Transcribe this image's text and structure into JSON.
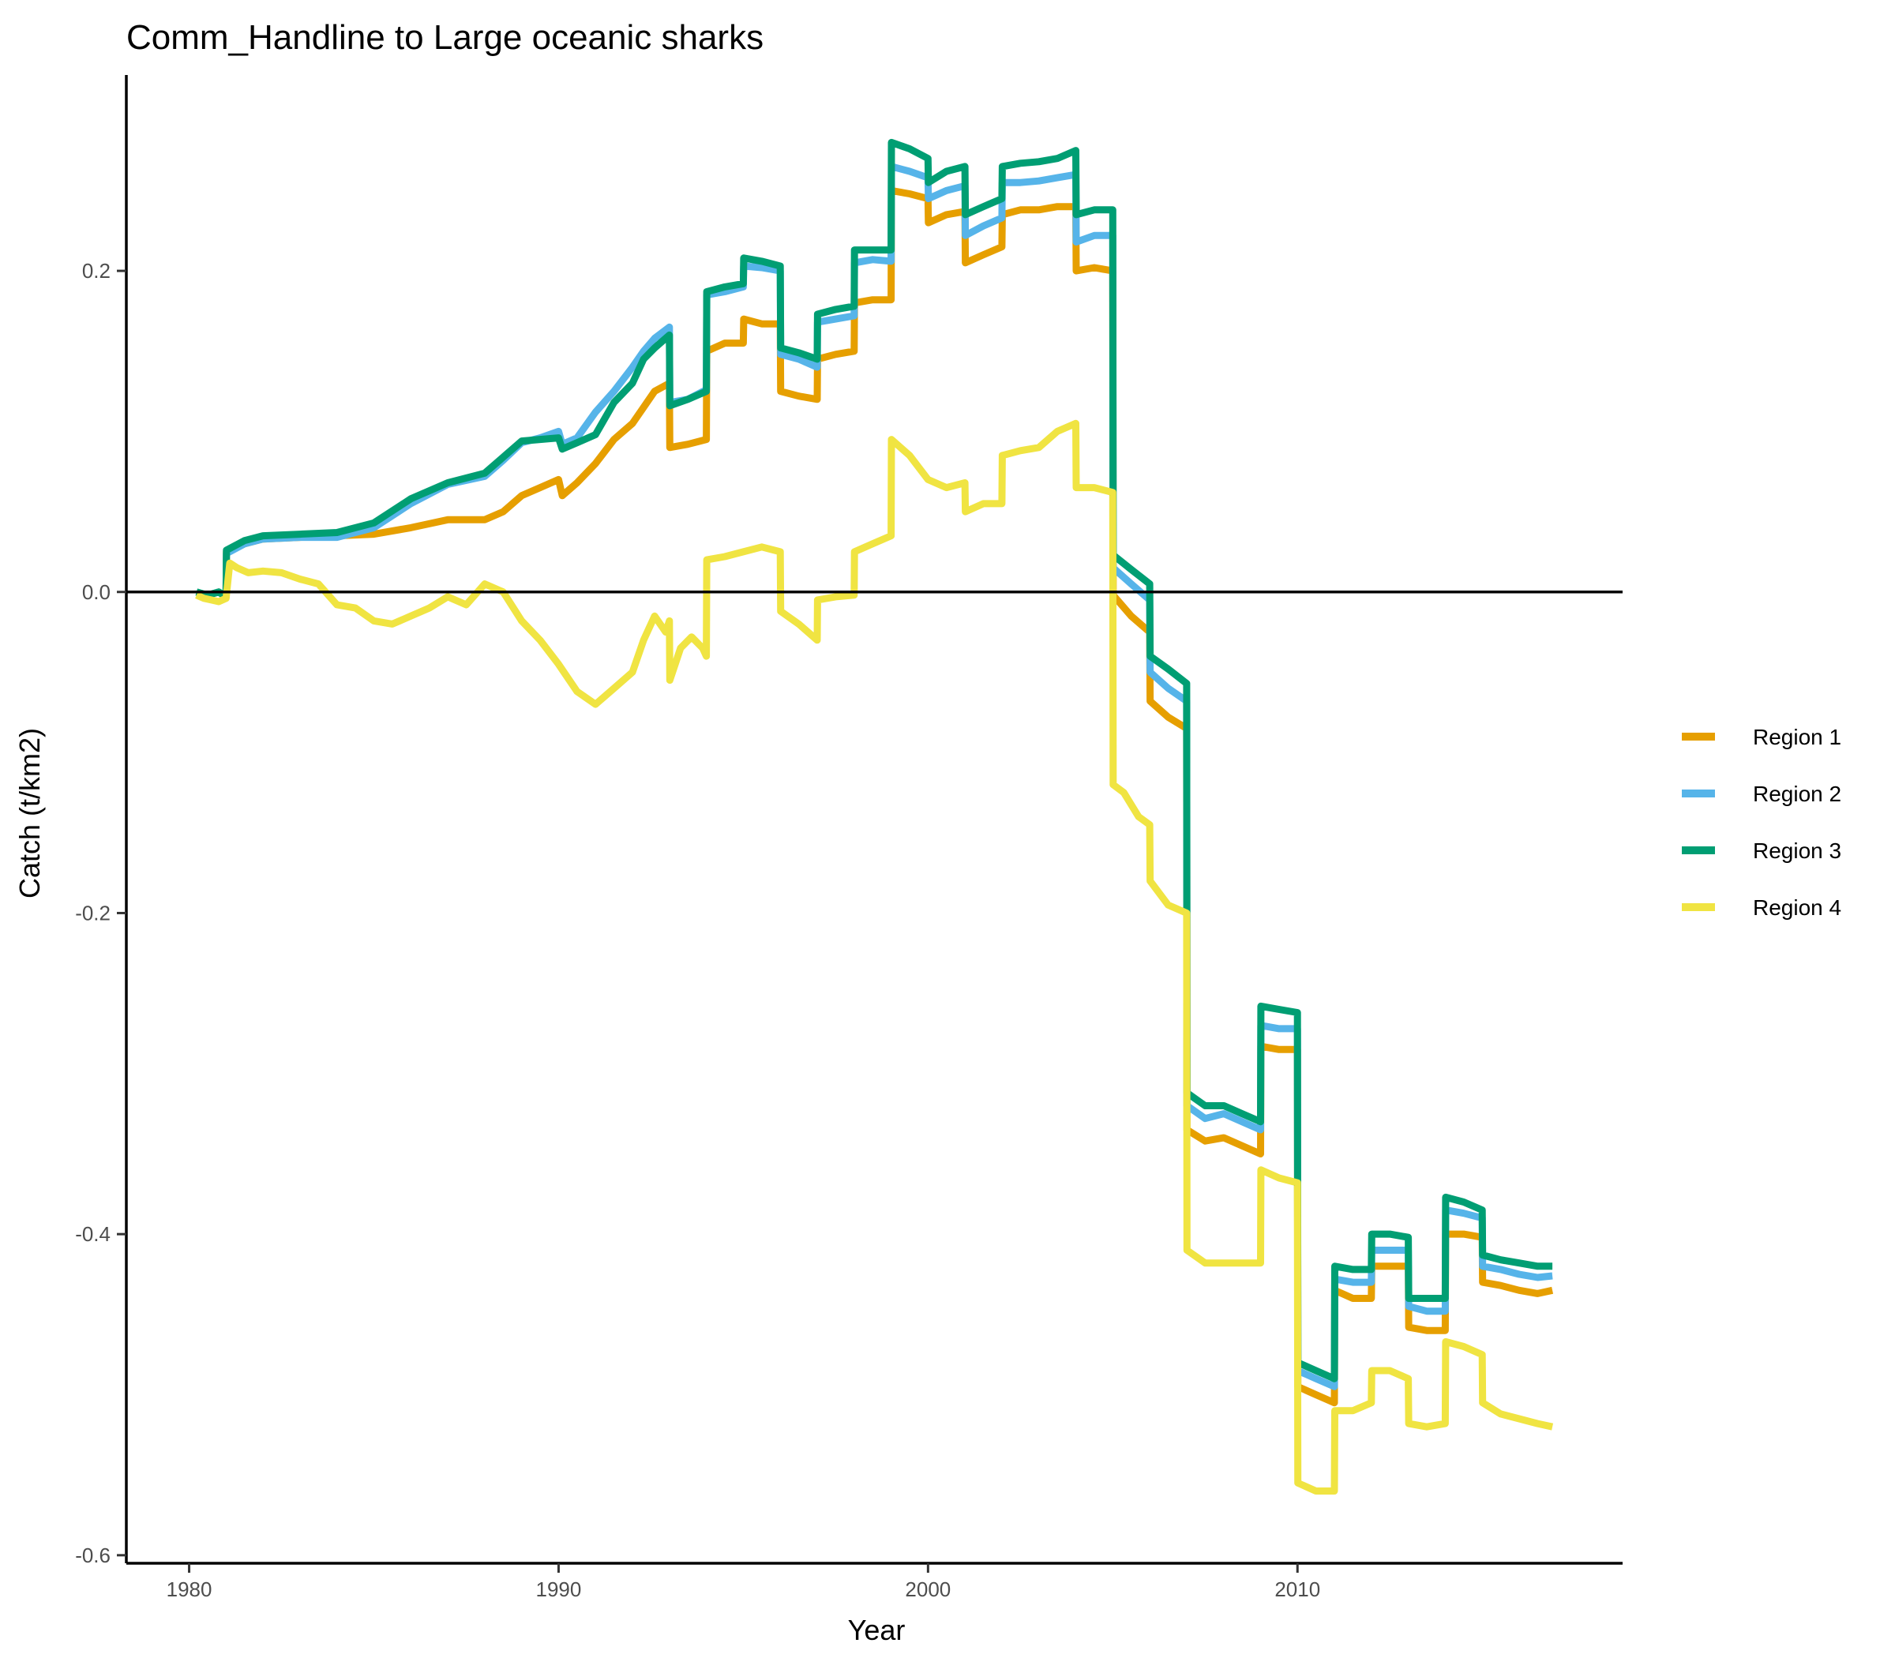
{
  "chart_data": {
    "type": "line",
    "title": "Comm_Handline to Large oceanic sharks",
    "xlabel": "Year",
    "ylabel": "Catch (t/km2)",
    "xlim": [
      1978.3,
      2018.8
    ],
    "ylim": [
      -0.605,
      0.322
    ],
    "xticks": [
      1980,
      1990,
      2000,
      2010
    ],
    "xtick_labels": [
      "1980",
      "1990",
      "2000",
      "2010"
    ],
    "yticks": [
      -0.6,
      -0.4,
      -0.2,
      0.0,
      0.2
    ],
    "ytick_labels": [
      "-0.6",
      "-0.4",
      "-0.2",
      "0.0",
      "0.2"
    ],
    "hline": 0,
    "grid": false,
    "legend_position": "right",
    "series": [
      {
        "name": "Region 1",
        "color": "#E69F00",
        "x": [
          1980.2,
          1980.5,
          1980.8,
          1981.0,
          1981.01,
          1981.5,
          1982,
          1983,
          1984,
          1985,
          1986,
          1987,
          1988,
          1988.5,
          1989,
          1989.5,
          1990,
          1990.1,
          1990.5,
          1991,
          1991.5,
          1992,
          1992.3,
          1992.6,
          1993.0,
          1993.01,
          1993.5,
          1994.0,
          1994.01,
          1994.5,
          1995.0,
          1995.01,
          1995.5,
          1996.0,
          1996.01,
          1996.5,
          1997.0,
          1997.01,
          1997.5,
          1998.0,
          1998.01,
          1998.5,
          1999.0,
          1999.01,
          1999.5,
          2000.0,
          2000.01,
          2000.5,
          2001.0,
          2001.01,
          2001.5,
          2002.0,
          2002.01,
          2002.5,
          2003.0,
          2003.5,
          2004.0,
          2004.01,
          2004.5,
          2005.0,
          2005.01,
          2005.5,
          2006.0,
          2006.01,
          2006.5,
          2007.0,
          2007.01,
          2007.5,
          2008.0,
          2008.01,
          2008.5,
          2009.0,
          2009.01,
          2009.5,
          2010.0,
          2010.01,
          2010.5,
          2011.0,
          2011.01,
          2011.5,
          2012.0,
          2012.01,
          2012.5,
          2013.0,
          2013.01,
          2013.5,
          2014.0,
          2014.01,
          2014.5,
          2015.0,
          2015.01,
          2015.5,
          2016.0,
          2016.5,
          2016.9
        ],
        "values": [
          0.0,
          -0.002,
          0.0,
          -0.003,
          0.025,
          0.03,
          0.033,
          0.034,
          0.035,
          0.036,
          0.04,
          0.045,
          0.045,
          0.05,
          0.06,
          0.065,
          0.07,
          0.06,
          0.068,
          0.08,
          0.095,
          0.105,
          0.115,
          0.125,
          0.13,
          0.09,
          0.092,
          0.095,
          0.15,
          0.155,
          0.155,
          0.17,
          0.167,
          0.167,
          0.125,
          0.122,
          0.12,
          0.145,
          0.148,
          0.15,
          0.18,
          0.182,
          0.182,
          0.25,
          0.248,
          0.245,
          0.23,
          0.235,
          0.237,
          0.205,
          0.21,
          0.215,
          0.235,
          0.238,
          0.238,
          0.24,
          0.24,
          0.2,
          0.202,
          0.2,
          -0.002,
          -0.015,
          -0.025,
          -0.068,
          -0.078,
          -0.085,
          -0.335,
          -0.342,
          -0.34,
          -0.34,
          -0.345,
          -0.35,
          -0.283,
          -0.285,
          -0.285,
          -0.495,
          -0.5,
          -0.505,
          -0.435,
          -0.44,
          -0.44,
          -0.42,
          -0.42,
          -0.42,
          -0.458,
          -0.46,
          -0.46,
          -0.4,
          -0.4,
          -0.402,
          -0.43,
          -0.432,
          -0.435,
          -0.437,
          -0.435
        ]
      },
      {
        "name": "Region 2",
        "color": "#56B4E9",
        "x": [
          1980.2,
          1980.5,
          1980.8,
          1981.0,
          1981.01,
          1981.5,
          1982,
          1983,
          1984,
          1985,
          1986,
          1987,
          1988,
          1988.5,
          1989,
          1989.5,
          1990,
          1990.1,
          1990.5,
          1991,
          1991.5,
          1992,
          1992.3,
          1992.6,
          1993.0,
          1993.01,
          1993.5,
          1994.0,
          1994.01,
          1994.5,
          1995.0,
          1995.01,
          1995.5,
          1996.0,
          1996.01,
          1996.5,
          1997.0,
          1997.01,
          1997.5,
          1998.0,
          1998.01,
          1998.5,
          1999.0,
          1999.01,
          1999.5,
          2000.0,
          2000.01,
          2000.5,
          2001.0,
          2001.01,
          2001.5,
          2002.0,
          2002.01,
          2002.5,
          2003.0,
          2003.5,
          2004.0,
          2004.01,
          2004.5,
          2005.0,
          2005.01,
          2005.5,
          2006.0,
          2006.01,
          2006.5,
          2007.0,
          2007.01,
          2007.5,
          2008.0,
          2008.01,
          2008.5,
          2009.0,
          2009.01,
          2009.5,
          2010.0,
          2010.01,
          2010.5,
          2011.0,
          2011.01,
          2011.5,
          2012.0,
          2012.01,
          2012.5,
          2013.0,
          2013.01,
          2013.5,
          2014.0,
          2014.01,
          2014.5,
          2015.0,
          2015.01,
          2015.5,
          2016.0,
          2016.5,
          2016.9
        ],
        "values": [
          0.0,
          -0.002,
          0.0,
          -0.003,
          0.024,
          0.03,
          0.033,
          0.034,
          0.034,
          0.04,
          0.055,
          0.067,
          0.072,
          0.082,
          0.093,
          0.096,
          0.1,
          0.092,
          0.096,
          0.112,
          0.125,
          0.14,
          0.15,
          0.158,
          0.165,
          0.118,
          0.12,
          0.126,
          0.185,
          0.187,
          0.19,
          0.203,
          0.202,
          0.2,
          0.148,
          0.145,
          0.14,
          0.168,
          0.17,
          0.172,
          0.205,
          0.207,
          0.206,
          0.265,
          0.262,
          0.258,
          0.245,
          0.25,
          0.253,
          0.222,
          0.228,
          0.233,
          0.255,
          0.255,
          0.256,
          0.258,
          0.26,
          0.218,
          0.222,
          0.222,
          0.015,
          0.005,
          -0.005,
          -0.05,
          -0.06,
          -0.068,
          -0.32,
          -0.328,
          -0.325,
          -0.325,
          -0.33,
          -0.335,
          -0.27,
          -0.272,
          -0.272,
          -0.485,
          -0.49,
          -0.495,
          -0.428,
          -0.43,
          -0.43,
          -0.41,
          -0.41,
          -0.41,
          -0.445,
          -0.448,
          -0.448,
          -0.385,
          -0.387,
          -0.39,
          -0.42,
          -0.422,
          -0.425,
          -0.427,
          -0.426
        ]
      },
      {
        "name": "Region 3",
        "color": "#009E73",
        "x": [
          1980.2,
          1980.5,
          1980.8,
          1981.0,
          1981.01,
          1981.5,
          1982,
          1983,
          1984,
          1985,
          1986,
          1987,
          1988,
          1988.5,
          1989,
          1989.5,
          1990,
          1990.1,
          1990.5,
          1991,
          1991.5,
          1992,
          1992.3,
          1992.6,
          1993.0,
          1993.01,
          1993.5,
          1994.0,
          1994.01,
          1994.5,
          1995.0,
          1995.01,
          1995.5,
          1996.0,
          1996.01,
          1996.5,
          1997.0,
          1997.01,
          1997.5,
          1998.0,
          1998.01,
          1998.5,
          1999.0,
          1999.01,
          1999.5,
          2000.0,
          2000.01,
          2000.5,
          2001.0,
          2001.01,
          2001.5,
          2002.0,
          2002.01,
          2002.5,
          2003.0,
          2003.5,
          2004.0,
          2004.01,
          2004.5,
          2005.0,
          2005.01,
          2005.5,
          2006.0,
          2006.01,
          2006.5,
          2007.0,
          2007.01,
          2007.5,
          2008.0,
          2008.01,
          2008.5,
          2009.0,
          2009.01,
          2009.5,
          2010.0,
          2010.01,
          2010.5,
          2011.0,
          2011.01,
          2011.5,
          2012.0,
          2012.01,
          2012.5,
          2013.0,
          2013.01,
          2013.5,
          2014.0,
          2014.01,
          2014.5,
          2015.0,
          2015.01,
          2015.5,
          2016.0,
          2016.5,
          2016.9
        ],
        "values": [
          0.0,
          -0.002,
          0.0,
          -0.003,
          0.026,
          0.032,
          0.035,
          0.036,
          0.037,
          0.043,
          0.058,
          0.068,
          0.074,
          0.084,
          0.094,
          0.095,
          0.096,
          0.089,
          0.093,
          0.098,
          0.118,
          0.13,
          0.145,
          0.152,
          0.16,
          0.116,
          0.12,
          0.125,
          0.187,
          0.19,
          0.192,
          0.208,
          0.206,
          0.203,
          0.152,
          0.149,
          0.145,
          0.173,
          0.176,
          0.178,
          0.213,
          0.213,
          0.213,
          0.28,
          0.276,
          0.27,
          0.255,
          0.262,
          0.265,
          0.235,
          0.24,
          0.245,
          0.265,
          0.267,
          0.268,
          0.27,
          0.275,
          0.235,
          0.238,
          0.238,
          0.023,
          0.014,
          0.005,
          -0.04,
          -0.048,
          -0.057,
          -0.312,
          -0.32,
          -0.32,
          -0.32,
          -0.325,
          -0.33,
          -0.258,
          -0.26,
          -0.262,
          -0.48,
          -0.485,
          -0.49,
          -0.42,
          -0.422,
          -0.422,
          -0.4,
          -0.4,
          -0.402,
          -0.44,
          -0.44,
          -0.44,
          -0.377,
          -0.38,
          -0.385,
          -0.413,
          -0.416,
          -0.418,
          -0.42,
          -0.42
        ]
      },
      {
        "name": "Region 4",
        "color": "#F0E442",
        "x": [
          1980.2,
          1980.4,
          1980.6,
          1980.8,
          1981.0,
          1981.1,
          1981.3,
          1981.6,
          1982,
          1982.5,
          1983,
          1983.5,
          1984,
          1984.5,
          1985,
          1985.5,
          1986,
          1986.5,
          1987,
          1987.5,
          1988,
          1988.5,
          1989,
          1989.5,
          1990,
          1990.5,
          1991,
          1991.5,
          1992,
          1992.3,
          1992.6,
          1992.9,
          1993.0,
          1993.01,
          1993.3,
          1993.6,
          1993.9,
          1994.0,
          1994.01,
          1994.5,
          1995.0,
          1995.5,
          1996.0,
          1996.01,
          1996.5,
          1997.0,
          1997.01,
          1997.5,
          1998.0,
          1998.01,
          1998.5,
          1999.0,
          1999.01,
          1999.5,
          2000.0,
          2000.5,
          2001.0,
          2001.01,
          2001.5,
          2002.0,
          2002.01,
          2002.5,
          2003.0,
          2003.5,
          2004.0,
          2004.01,
          2004.5,
          2005.0,
          2005.01,
          2005.3,
          2005.7,
          2006.0,
          2006.01,
          2006.5,
          2007.0,
          2007.01,
          2007.5,
          2008.0,
          2008.5,
          2009.0,
          2009.01,
          2009.5,
          2010.0,
          2010.01,
          2010.5,
          2011.0,
          2011.01,
          2011.5,
          2012.0,
          2012.01,
          2012.5,
          2013.0,
          2013.01,
          2013.5,
          2014.0,
          2014.01,
          2014.5,
          2015.0,
          2015.01,
          2015.5,
          2016.0,
          2016.5,
          2016.9
        ],
        "values": [
          -0.002,
          -0.004,
          -0.005,
          -0.006,
          -0.004,
          0.018,
          0.015,
          0.012,
          0.013,
          0.012,
          0.008,
          0.005,
          -0.008,
          -0.01,
          -0.018,
          -0.02,
          -0.015,
          -0.01,
          -0.003,
          -0.008,
          0.005,
          0.0,
          -0.018,
          -0.03,
          -0.045,
          -0.062,
          -0.07,
          -0.06,
          -0.05,
          -0.03,
          -0.015,
          -0.025,
          -0.018,
          -0.055,
          -0.035,
          -0.028,
          -0.035,
          -0.04,
          0.02,
          0.022,
          0.025,
          0.028,
          0.025,
          -0.012,
          -0.02,
          -0.03,
          -0.005,
          -0.003,
          -0.002,
          0.025,
          0.03,
          0.035,
          0.095,
          0.085,
          0.07,
          0.065,
          0.068,
          0.05,
          0.055,
          0.055,
          0.085,
          0.088,
          0.09,
          0.1,
          0.105,
          0.065,
          0.065,
          0.062,
          -0.12,
          -0.125,
          -0.14,
          -0.145,
          -0.18,
          -0.195,
          -0.2,
          -0.41,
          -0.418,
          -0.418,
          -0.418,
          -0.418,
          -0.36,
          -0.365,
          -0.368,
          -0.555,
          -0.56,
          -0.56,
          -0.51,
          -0.51,
          -0.505,
          -0.485,
          -0.485,
          -0.49,
          -0.518,
          -0.52,
          -0.518,
          -0.467,
          -0.47,
          -0.475,
          -0.505,
          -0.512,
          -0.515,
          -0.518,
          -0.52
        ]
      }
    ]
  }
}
